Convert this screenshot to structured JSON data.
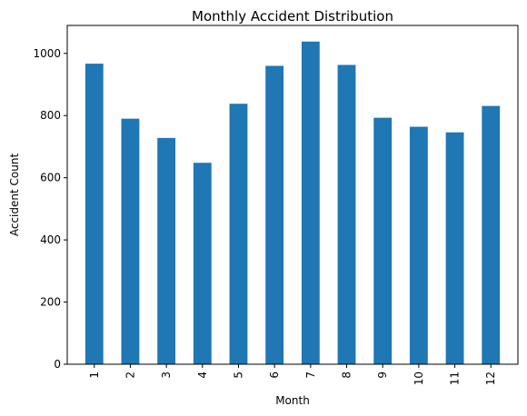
{
  "chart_data": {
    "type": "bar",
    "title": "Monthly Accident Distribution",
    "xlabel": "Month",
    "ylabel": "Accident Count",
    "categories": [
      "1",
      "2",
      "3",
      "4",
      "5",
      "6",
      "7",
      "8",
      "9",
      "10",
      "11",
      "12"
    ],
    "values": [
      967,
      790,
      728,
      648,
      838,
      960,
      1038,
      963,
      793,
      764,
      746,
      831
    ],
    "ylim": [
      0,
      1090
    ],
    "yticks": [
      0,
      200,
      400,
      600,
      800,
      1000
    ],
    "ytick_labels": [
      "0",
      "200",
      "400",
      "600",
      "800",
      "1000"
    ],
    "bar_color": "#1f77b4",
    "grid": false,
    "legend": "none"
  }
}
